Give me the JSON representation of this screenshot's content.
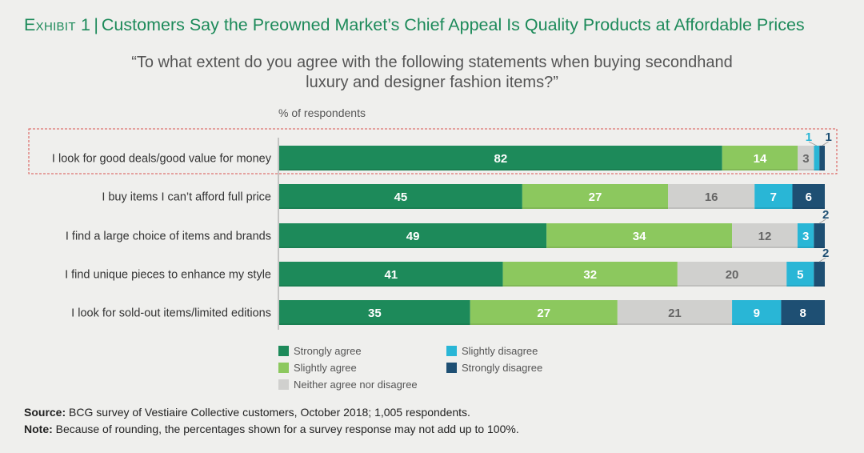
{
  "header": {
    "kicker": "Exhibit 1",
    "separator": "|",
    "title": "Customers Say the Preowned Market’s Chief Appeal Is Quality Products at Affordable Prices"
  },
  "subtitle": {
    "line1": "“To what extent do you agree with the following statements when buying secondhand",
    "line2": "luxury and designer fashion items?”"
  },
  "axis_note": "% of respondents",
  "colors": {
    "strongly_agree": "#1d8a5a",
    "slightly_agree": "#8cc85e",
    "neutral": "#d0d0ce",
    "slightly_disagree": "#29b6d6",
    "strongly_disagree": "#1e4f73",
    "highlight": "#d9534f"
  },
  "chart_data": {
    "type": "bar",
    "orientation": "horizontal",
    "stacked": true,
    "categories": [
      "I look for good deals/good value for money",
      "I buy items I can’t afford full price",
      "I find a large choice of items and brands",
      "I find unique pieces to enhance my style",
      "I look for sold-out items/limited editions"
    ],
    "series": [
      {
        "name": "Strongly agree",
        "values": [
          82,
          45,
          49,
          41,
          35
        ]
      },
      {
        "name": "Slightly agree",
        "values": [
          14,
          27,
          34,
          32,
          27
        ]
      },
      {
        "name": "Neither agree nor disagree",
        "values": [
          3,
          16,
          12,
          20,
          21
        ]
      },
      {
        "name": "Slightly disagree",
        "values": [
          1,
          7,
          3,
          5,
          9
        ]
      },
      {
        "name": "Strongly disagree",
        "values": [
          1,
          6,
          2,
          2,
          8
        ]
      }
    ],
    "highlighted_category": "I look for good deals/good value for money",
    "ylabel": "% of respondents",
    "legend_position": "bottom",
    "grid": false
  },
  "source": {
    "source_label": "Source:",
    "source_text": "BCG survey of Vestiaire Collective customers, October 2018; 1,005 respondents.",
    "note_label": "Note:",
    "note_text": "Because of rounding, the percentages shown for a survey response may not add up to 100%."
  }
}
